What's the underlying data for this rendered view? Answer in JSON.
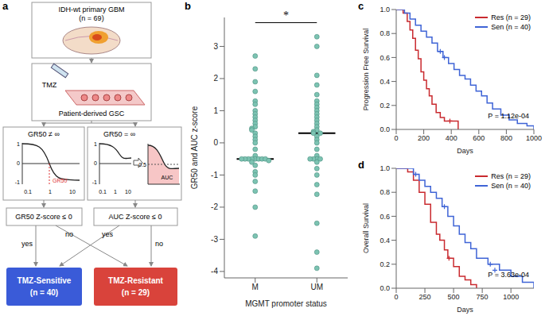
{
  "diagram": {
    "panel_label": "a",
    "source": {
      "title": "IDH-wt primary GBM",
      "n": "(n = 69)"
    },
    "treatment": "TMZ",
    "model": "Patient-derived GSC",
    "branches": [
      {
        "title": "GR50 ≠ ∞",
        "marker_label": "GR50",
        "y_labels": [
          "1",
          "0",
          "-1"
        ],
        "x_labels": [
          "0.1",
          "1",
          "10"
        ]
      },
      {
        "title": "GR50 = ∞",
        "y_labels": [
          "1",
          "0",
          "-1"
        ],
        "x_labels": [
          "0.1",
          "1",
          "10"
        ],
        "auc_label": "AUC",
        "auc_level": "0.5"
      }
    ],
    "decisions": [
      "GR50 Z-score ≤ 0",
      "AUC Z-score ≤ 0"
    ],
    "yes": "yes",
    "no": "no",
    "outcomes": [
      {
        "label": "TMZ-Sensitive",
        "n": "(n = 40)",
        "color": "#3a5bd8"
      },
      {
        "label": "TMZ-Resistant",
        "n": "(n = 29)",
        "color": "#d9433b"
      }
    ]
  },
  "chart_data": [
    {
      "type": "scatter",
      "panel_label": "b",
      "xlabel": "MGMT promoter status",
      "ylabel": "GR50 and AUC z-score",
      "categories": [
        "M",
        "UM"
      ],
      "values": [
        [
          2.7,
          2.3,
          1.9,
          1.6,
          1.3,
          1.2,
          1.0,
          0.9,
          0.8,
          0.7,
          0.6,
          0.5,
          0.45,
          0.4,
          0.3,
          0.2,
          0.1,
          0.0,
          -0.2,
          -0.4,
          -0.5,
          -0.5,
          -0.5,
          -0.5,
          -0.5,
          -0.5,
          -0.5,
          -0.5,
          -0.55,
          -0.6,
          -0.7,
          -0.9,
          -1.0,
          -1.2,
          -1.5,
          -2.0,
          -2.9
        ],
        [
          3.3,
          3.0,
          2.1,
          1.8,
          1.5,
          1.3,
          1.2,
          1.1,
          1.0,
          0.9,
          0.8,
          0.7,
          0.6,
          0.5,
          0.4,
          0.35,
          0.3,
          0.3,
          0.2,
          0.1,
          0.0,
          -0.2,
          -0.4,
          -0.5,
          -0.5,
          -0.5,
          -0.5,
          -0.6,
          -0.8,
          -1.0,
          -1.3,
          -1.6,
          -2.5,
          -3.4,
          -3.9
        ]
      ],
      "medians": [
        -0.5,
        0.3
      ],
      "color": "#7cc3b2",
      "ylim": [
        -4.2,
        3.9
      ],
      "yticks": [
        -4,
        -3,
        -2,
        -1,
        0,
        1,
        2,
        3
      ],
      "annotations": [
        "*"
      ]
    },
    {
      "type": "line",
      "panel_label": "c",
      "xlabel": "Days",
      "ylabel": "Progression Free Survival",
      "line_style": "step",
      "marker": "plus",
      "legend": "upper right",
      "xlim": [
        0,
        1000
      ],
      "xticks": [
        0,
        200,
        400,
        600,
        800,
        1000
      ],
      "ylim": [
        0,
        1
      ],
      "yticks": [
        {
          "value": 0,
          "label": "0.0"
        },
        0.2,
        0.4,
        0.6,
        0.8,
        {
          "value": 1,
          "label": "1.0"
        }
      ],
      "annotations": [
        "P = 1.12e-04"
      ],
      "series": [
        {
          "name": "Res (n = 29)",
          "color": "#c92a2f",
          "x": [
            0,
            50,
            80,
            100,
            120,
            140,
            160,
            180,
            200,
            220,
            240,
            260,
            290,
            320,
            350,
            380,
            450
          ],
          "values": [
            1,
            0.97,
            0.9,
            0.83,
            0.76,
            0.66,
            0.59,
            0.48,
            0.41,
            0.34,
            0.28,
            0.21,
            0.14,
            0.1,
            0.07,
            0.07,
            0
          ],
          "censored_x": [
            390
          ],
          "censored_y": [
            0.07
          ]
        },
        {
          "name": "Sen (n = 40)",
          "color": "#3f64d6",
          "x": [
            0,
            60,
            100,
            140,
            180,
            220,
            260,
            300,
            340,
            380,
            420,
            460,
            500,
            540,
            580,
            620,
            660,
            700,
            760,
            820,
            880,
            950,
            1000
          ],
          "values": [
            1,
            0.97,
            0.92,
            0.87,
            0.82,
            0.77,
            0.72,
            0.65,
            0.6,
            0.55,
            0.5,
            0.45,
            0.42,
            0.37,
            0.32,
            0.28,
            0.22,
            0.17,
            0.12,
            0.08,
            0.05,
            0.03,
            0
          ],
          "censored_x": [
            320,
            350
          ],
          "censored_y": [
            0.65,
            0.6
          ]
        }
      ]
    },
    {
      "type": "line",
      "panel_label": "d",
      "xlabel": "Days",
      "ylabel": "Overall Survival",
      "line_style": "step",
      "marker": "plus",
      "legend": "upper right",
      "xlim": [
        0,
        1200
      ],
      "xticks": [
        0,
        250,
        500,
        750,
        1000
      ],
      "ylim": [
        0,
        1
      ],
      "yticks": [
        {
          "value": 0,
          "label": "0.0"
        },
        0.2,
        0.4,
        0.6,
        0.8,
        {
          "value": 1,
          "label": "1.0"
        }
      ],
      "annotations": [
        "P = 3.63e-04"
      ],
      "series": [
        {
          "name": "Res (n = 29)",
          "color": "#c92a2f",
          "x": [
            0,
            100,
            150,
            200,
            250,
            300,
            350,
            380,
            420,
            450,
            500,
            550,
            600,
            650,
            700
          ],
          "values": [
            1,
            0.97,
            0.9,
            0.8,
            0.7,
            0.55,
            0.45,
            0.4,
            0.32,
            0.25,
            0.18,
            0.1,
            0.07,
            0.03,
            0
          ],
          "censored_x": [
            460
          ],
          "censored_y": [
            0.25
          ]
        },
        {
          "name": "Sen (n = 40)",
          "color": "#3f64d6",
          "x": [
            0,
            150,
            200,
            250,
            300,
            350,
            400,
            450,
            500,
            550,
            600,
            650,
            700,
            800,
            900,
            1000,
            1100,
            1200
          ],
          "values": [
            1,
            0.95,
            0.9,
            0.85,
            0.8,
            0.75,
            0.68,
            0.6,
            0.52,
            0.45,
            0.38,
            0.33,
            0.25,
            0.2,
            0.15,
            0.1,
            0.05,
            0
          ],
          "censored_x": [
            170,
            420,
            820,
            860
          ],
          "censored_y": [
            0.95,
            0.68,
            0.2,
            0.15
          ]
        }
      ]
    }
  ]
}
